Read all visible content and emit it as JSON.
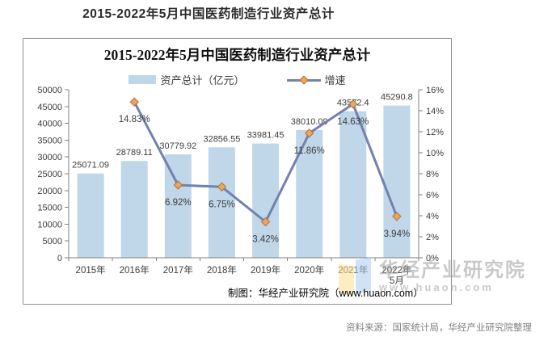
{
  "page": {
    "title": "2015-2022年5月中国医药制造行业资产总计",
    "source_note": "资料来源：国家统计局，华经产业研究院整理"
  },
  "chart": {
    "title": "2015-2022年5月中国医药制造行业资产总计",
    "legend": [
      {
        "label": "资产总计（亿元）",
        "type": "bar"
      },
      {
        "label": "增速",
        "type": "line"
      }
    ],
    "credit": "制图：华经产业研究院（www.huaon.com）",
    "watermark": {
      "name": "华经产业研究院",
      "url": "www.huaon.com"
    },
    "colors": {
      "bar": "#bfd7e9",
      "line": "#7480b0",
      "marker": "#f0a35c",
      "marker_border": "#ae7439",
      "axis": "#808080",
      "label": "#3d3d3d",
      "watermark_blue": "#a9cded",
      "watermark_yellow": "#ffdf91"
    }
  },
  "chart_data": {
    "type": "combo",
    "categories": [
      "2015年",
      "2016年",
      "2017年",
      "2018年",
      "2019年",
      "2020年",
      "2021年",
      "2022年5月"
    ],
    "category_lines": [
      [
        "2015年"
      ],
      [
        "2016年"
      ],
      [
        "2017年"
      ],
      [
        "2018年"
      ],
      [
        "2019年"
      ],
      [
        "2020年"
      ],
      [
        "2021年"
      ],
      [
        "2022年",
        "5月"
      ]
    ],
    "series": [
      {
        "name": "资产总计（亿元）",
        "type": "bar",
        "axis": "left",
        "values": [
          25071.09,
          28789.11,
          30779.92,
          32856.55,
          33981.45,
          38010.09,
          43572.4,
          45290.8
        ],
        "labels": [
          "25071.09",
          "28789.11",
          "30779.92",
          "32856.55",
          "33981.45",
          "38010.09",
          "43572.4",
          "45290.8"
        ]
      },
      {
        "name": "增速",
        "type": "line",
        "axis": "right",
        "values": [
          null,
          14.83,
          6.92,
          6.75,
          3.42,
          11.86,
          14.63,
          3.94
        ],
        "labels": [
          "",
          "14.83%",
          "6.92%",
          "6.75%",
          "3.42%",
          "11.86%",
          "14.63%",
          "3.94%"
        ]
      }
    ],
    "left_axis": {
      "min": 0,
      "max": 50000,
      "step": 5000
    },
    "right_axis": {
      "min": 0,
      "max": 16,
      "step": 2,
      "suffix": "%"
    },
    "legend_position": "top",
    "grid": false
  }
}
